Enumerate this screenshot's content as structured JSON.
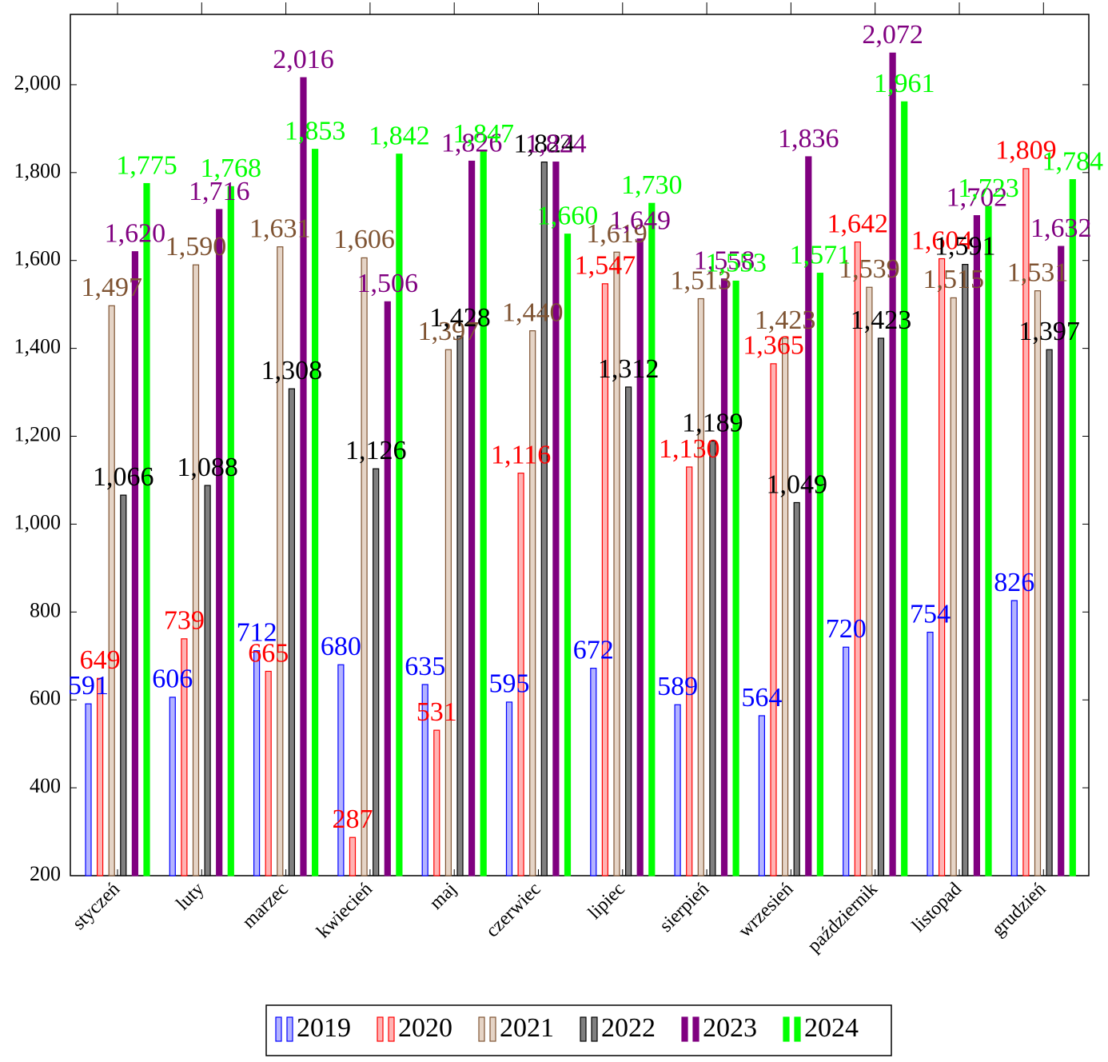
{
  "chart_data": {
    "type": "bar",
    "categories": [
      "styczeń",
      "luty",
      "marzec",
      "kwiecień",
      "maj",
      "czerwiec",
      "lipiec",
      "sierpień",
      "wrzesień",
      "październik",
      "listopad",
      "grudzień"
    ],
    "series": [
      {
        "name": "2019",
        "color": "#0000ff",
        "fill": "#b3b3ff",
        "values": [
          591,
          606,
          712,
          680,
          635,
          595,
          672,
          589,
          564,
          720,
          754,
          826
        ],
        "value_labels": [
          "591",
          "606",
          "712",
          "680",
          "635",
          "595",
          "672",
          "589",
          "564",
          "720",
          "754",
          "826"
        ]
      },
      {
        "name": "2020",
        "color": "#ff0000",
        "fill": "#ffb3b3",
        "values": [
          649,
          739,
          665,
          287,
          531,
          1116,
          1547,
          1130,
          1365,
          1642,
          1604,
          1809
        ],
        "value_labels": [
          "649",
          "739",
          "665",
          "287",
          "531",
          "1,116",
          "1,547",
          "1,130",
          "1,365",
          "1,642",
          "1,604",
          "1,809"
        ]
      },
      {
        "name": "2021",
        "color": "#7f5433",
        "fill": "#e5d4c6",
        "values": [
          1497,
          1590,
          1631,
          1606,
          1397,
          1440,
          1619,
          1513,
          1423,
          1539,
          1515,
          1531
        ],
        "value_labels": [
          "1,497",
          "1,590",
          "1,631",
          "1,606",
          "1,397",
          "1,440",
          "1,619",
          "1,513",
          "1,423",
          "1,539",
          "1,515",
          "1,531"
        ]
      },
      {
        "name": "2022",
        "color": "#000000",
        "fill": "#808080",
        "values": [
          1066,
          1088,
          1308,
          1126,
          1428,
          1824,
          1312,
          1189,
          1049,
          1423,
          1591,
          1397
        ],
        "value_labels": [
          "1,066",
          "1,088",
          "1,308",
          "1,126",
          "1,428",
          "1,824",
          "1,312",
          "1,189",
          "1,049",
          "1,423",
          "1,591",
          "1,397"
        ]
      },
      {
        "name": "2023",
        "color": "#800080",
        "fill": "#800080",
        "values": [
          1620,
          1716,
          2016,
          1506,
          1826,
          1824,
          1649,
          1558,
          1836,
          2072,
          1702,
          1632
        ],
        "value_labels": [
          "1,620",
          "1,716",
          "2,016",
          "1,506",
          "1,826",
          "1,824",
          "1,649",
          "1,558",
          "1,836",
          "2,072",
          "1,702",
          "1,632"
        ]
      },
      {
        "name": "2024",
        "color": "#00ff00",
        "fill": "#00ff00",
        "values": [
          1775,
          1768,
          1853,
          1842,
          1847,
          1660,
          1730,
          1553,
          1571,
          1961,
          1723,
          1784
        ],
        "value_labels": [
          "1,775",
          "1,768",
          "1,853",
          "1,842",
          "1,847",
          "1,660",
          "1,730",
          "1,553",
          "1,571",
          "1,961",
          "1,723",
          "1,784"
        ]
      }
    ],
    "ylim": [
      200,
      2160
    ],
    "yticks": [
      200,
      400,
      600,
      800,
      {
        "value": 1000,
        "label": "1,000"
      },
      {
        "value": 1200,
        "label": "1,200"
      },
      {
        "value": 1400,
        "label": "1,400"
      },
      {
        "value": 1600,
        "label": "1,600"
      },
      {
        "value": 1800,
        "label": "1,800"
      },
      {
        "value": 2000,
        "label": "2,000"
      }
    ],
    "legend": "bottom"
  }
}
